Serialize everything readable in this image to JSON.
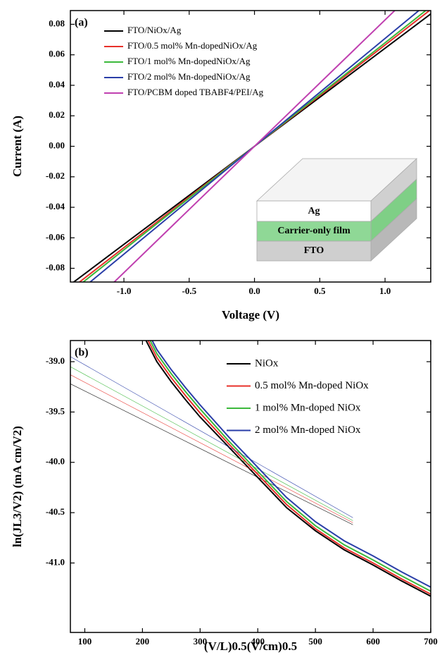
{
  "chart_data": [
    {
      "type": "line",
      "panel_label": "(a)",
      "x_label": "Voltage (V)",
      "y_label": "Current (A)",
      "xlim": [
        -1.41,
        1.35
      ],
      "ylim": [
        -0.089,
        0.089
      ],
      "xticks": [
        {
          "value": -1.0,
          "label": "-1.0"
        },
        -0.5,
        {
          "value": 0,
          "label": "0.0"
        },
        0.5,
        {
          "value": 1.0,
          "label": "1.0"
        }
      ],
      "yticks": [
        -0.08,
        -0.06,
        -0.04,
        -0.02,
        {
          "value": 0,
          "label": "0.00"
        },
        0.02,
        0.04,
        0.06,
        0.08
      ],
      "x": [
        -1.4,
        0,
        1.4
      ],
      "series": [
        {
          "name": "FTO/NiOx/Ag",
          "color": "#000000",
          "values": [
            -0.09,
            0,
            0.09
          ]
        },
        {
          "name": "FTO/0.5 mol% Mn-dopedNiOx/Ag",
          "color": "#e8302a",
          "values": [
            -0.093,
            0,
            0.093
          ]
        },
        {
          "name": "FTO/1 mol% Mn-dopedNiOx/Ag",
          "color": "#3cb93c",
          "values": [
            -0.095,
            0,
            0.095
          ]
        },
        {
          "name": "FTO/2 mol% Mn-dopedNiOx/Ag",
          "color": "#2a3ea8",
          "values": [
            -0.099,
            0,
            0.099
          ]
        },
        {
          "name": "FTO/PCBM doped TBABF4/PEI/Ag",
          "color": "#c040b0",
          "values": [
            -0.116,
            0,
            0.116
          ]
        }
      ],
      "legend": "upper left",
      "annotations": [
        "Ag",
        "Carrier-only film",
        "FTO"
      ]
    },
    {
      "type": "line",
      "panel_label": "(b)",
      "x_label": "(V/L)0.5(V/cm)0.5",
      "y_label": "ln(JL3/V2) (mA cm/V2)",
      "xlim": [
        75,
        700
      ],
      "ylim": [
        -41.69,
        -38.79
      ],
      "xticks": [
        100,
        200,
        300,
        400,
        500,
        600,
        700
      ],
      "yticks": [
        {
          "value": -39,
          "label": "-39.0"
        },
        -39.5,
        {
          "value": -40,
          "label": "-40.0"
        },
        -40.5,
        {
          "value": -41,
          "label": "-41.0"
        }
      ],
      "x": [
        200,
        225,
        250,
        275,
        300,
        350,
        400,
        450,
        500,
        550,
        600,
        650,
        700
      ],
      "fit_x": [
        75,
        565
      ],
      "series": [
        {
          "name": "NiOx",
          "color": "#000000",
          "values": [
            -38.72,
            -39.0,
            -39.2,
            -39.38,
            -39.55,
            -39.85,
            -40.15,
            -40.45,
            -40.68,
            -40.87,
            -41.02,
            -41.18,
            -41.33
          ],
          "fit_values": [
            -39.22,
            -40.62
          ]
        },
        {
          "name": "0.5 mol% Mn-doped NiOx",
          "color": "#e8302a",
          "values": [
            -38.68,
            -38.96,
            -39.16,
            -39.34,
            -39.51,
            -39.82,
            -40.12,
            -40.42,
            -40.66,
            -40.85,
            -41.0,
            -41.16,
            -41.31
          ],
          "fit_values": [
            -39.13,
            -40.6
          ]
        },
        {
          "name": "1 mol% Mn-doped NiOx",
          "color": "#3cb93c",
          "values": [
            -38.64,
            -38.92,
            -39.12,
            -39.3,
            -39.47,
            -39.79,
            -40.09,
            -40.39,
            -40.63,
            -40.82,
            -40.97,
            -41.13,
            -41.28
          ],
          "fit_values": [
            -39.05,
            -40.58
          ]
        },
        {
          "name": "2 mol% Mn-doped NiOx",
          "color": "#2a3ea8",
          "values": [
            -38.6,
            -38.88,
            -39.08,
            -39.26,
            -39.43,
            -39.75,
            -40.05,
            -40.35,
            -40.59,
            -40.78,
            -40.93,
            -41.09,
            -41.24
          ],
          "fit_values": [
            -38.95,
            -40.55
          ]
        }
      ],
      "legend": "upper right"
    }
  ]
}
